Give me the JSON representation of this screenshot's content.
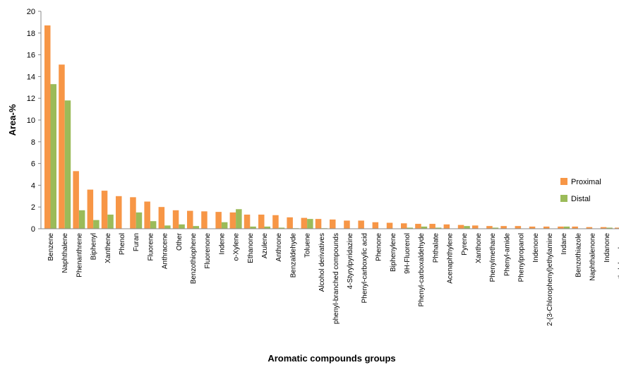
{
  "chart_data": {
    "type": "bar",
    "xlabel": "Aromatic compounds groups",
    "ylabel": "Area-%",
    "ylim": [
      0,
      20
    ],
    "yticks": [
      0,
      2,
      4,
      6,
      8,
      10,
      12,
      14,
      16,
      18,
      20
    ],
    "grid": false,
    "legend_position": "right",
    "categories": [
      "Benzene",
      "Naphthalene",
      "Phenanthrene",
      "Biphenyl",
      "Xanthene",
      "Phenol",
      "Furan",
      "Fluorene",
      "Anthracene",
      "Other",
      "Benzothiophene",
      "Fluorenone",
      "Indene",
      "o-Xylene",
      "Ethanone",
      "Azulene",
      "Anthrone",
      "Benzaldehyde",
      "Toluene",
      "Alcohol derivatives",
      "phenyl-branched compounds",
      "4-Styrylpyridazine",
      "Phenyl-carboxylic acid",
      "Phenone",
      "Biphenylene",
      "9H-Fluorenol",
      "Phenyl-carboxaldehyde",
      "Phthalate",
      "Acenaphthylene",
      "Pyrene",
      "Xanthone",
      "Phenylmethane",
      "Phenyl-amide",
      "Phenylpropanol",
      "Indenone",
      "2-(3-Chlorophenyl)ethylamine",
      "Indane",
      "Benzothiazole",
      "Naphthalenone",
      "Indanone",
      "methylphenylurea"
    ],
    "series": [
      {
        "name": "Proximal",
        "color": "#f79646",
        "values": [
          18.7,
          15.1,
          5.3,
          3.6,
          3.5,
          3.0,
          2.9,
          2.5,
          2.0,
          1.7,
          1.65,
          1.6,
          1.55,
          1.5,
          1.3,
          1.3,
          1.25,
          1.05,
          1.0,
          0.9,
          0.85,
          0.75,
          0.75,
          0.6,
          0.55,
          0.5,
          0.45,
          0.45,
          0.4,
          0.35,
          0.3,
          0.25,
          0.25,
          0.25,
          0.2,
          0.2,
          0.2,
          0.2,
          0.15,
          0.15,
          0.1
        ]
      },
      {
        "name": "Distal",
        "color": "#9bbb59",
        "values": [
          13.3,
          11.8,
          1.7,
          0.8,
          1.3,
          0,
          1.5,
          0.7,
          0.3,
          0.4,
          0.25,
          0,
          0.6,
          1.8,
          0.2,
          0.2,
          0.1,
          0.05,
          0.9,
          0.05,
          0,
          0,
          0,
          0,
          0,
          0.1,
          0.2,
          0.1,
          0,
          0.25,
          0,
          0.1,
          0,
          0,
          0,
          0,
          0.2,
          0,
          0,
          0.1,
          0
        ]
      }
    ]
  }
}
